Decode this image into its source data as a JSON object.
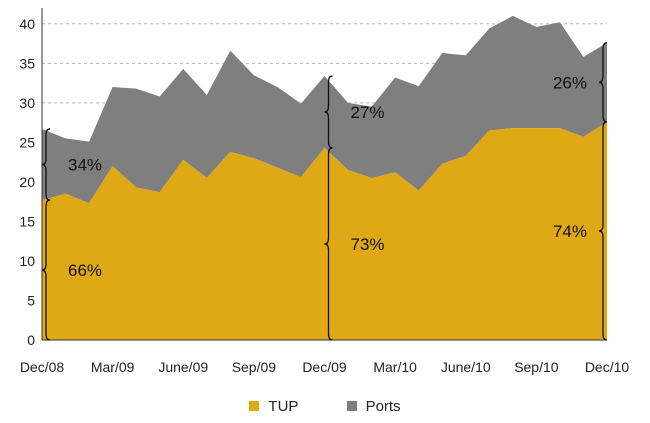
{
  "chart_data": {
    "type": "area",
    "stacked": true,
    "x": [
      "Dec/08",
      "Jan/09",
      "Feb/09",
      "Mar/09",
      "Apr/09",
      "May/09",
      "June/09",
      "Jul/09",
      "Aug/09",
      "Sep/09",
      "Oct/09",
      "Nov/09",
      "Dec/09",
      "Jan/10",
      "Feb/10",
      "Mar/10",
      "Apr/10",
      "May/10",
      "June/10",
      "Jul/10",
      "Aug/10",
      "Sep/10",
      "Oct/10",
      "Nov/10",
      "Dec/10"
    ],
    "xtick_labels": [
      "Dec/08",
      "Mar/09",
      "June/09",
      "Sep/09",
      "Dec/09",
      "Mar/10",
      "June/10",
      "Sep/10",
      "Dec/10"
    ],
    "xtick_indices": [
      0,
      3,
      6,
      9,
      12,
      15,
      18,
      21,
      24
    ],
    "series": [
      {
        "name": "TUP",
        "color": "#dfa916",
        "values": [
          17.7,
          18.5,
          17.3,
          22,
          19.3,
          18.7,
          22.8,
          20.5,
          23.8,
          23,
          21.8,
          20.6,
          24.3,
          21.5,
          20.5,
          21.2,
          18.9,
          22.3,
          23.3,
          26.5,
          26.8,
          26.8,
          26.8,
          25.7,
          27.6
        ]
      },
      {
        "name": "Ports",
        "color": "#7f7f7f",
        "values": [
          9,
          7,
          7.8,
          10,
          12.5,
          12.1,
          11.5,
          10.5,
          12.8,
          10.5,
          10.2,
          9.3,
          9.1,
          8.5,
          9,
          12,
          13.2,
          14,
          12.7,
          12.9,
          14.2,
          12.8,
          13.4,
          10.1,
          10
        ]
      }
    ],
    "ylim": [
      0,
      42
    ],
    "yticks": [
      0,
      5,
      10,
      15,
      20,
      25,
      30,
      35,
      40
    ],
    "grid": "horizontal-dashed",
    "legend_position": "bottom",
    "annotations": [
      {
        "index": 0,
        "from": 0,
        "to": 17.7,
        "label": "66%"
      },
      {
        "index": 0,
        "from": 17.7,
        "to": 26.7,
        "label": "34%"
      },
      {
        "index": 12,
        "from": 0,
        "to": 24.3,
        "label": "73%"
      },
      {
        "index": 12,
        "from": 24.3,
        "to": 33.4,
        "label": "27%"
      },
      {
        "index": 24,
        "from": 0,
        "to": 27.6,
        "label": "74%"
      },
      {
        "index": 24,
        "from": 27.6,
        "to": 37.6,
        "label": "26%"
      }
    ]
  },
  "legend": {
    "items": [
      {
        "label": "TUP",
        "color": "#dfa916"
      },
      {
        "label": "Ports",
        "color": "#7f7f7f"
      }
    ]
  }
}
